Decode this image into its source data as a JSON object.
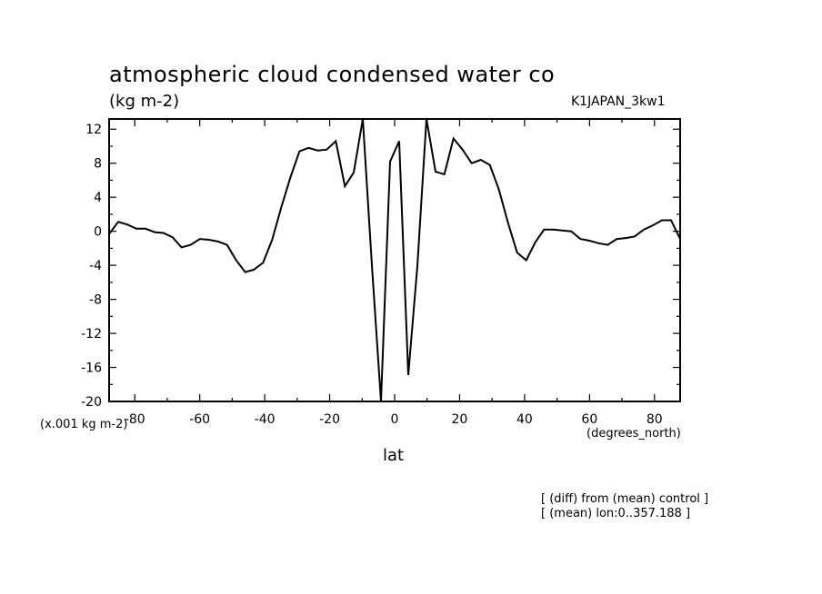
{
  "chart_data": {
    "type": "line",
    "title": "atmospheric cloud condensed water co",
    "units": "(kg m-2)",
    "run_label": "K1JAPAN_3kw1",
    "scale_note": "(x.001 kg m-2)",
    "xlabel": "lat",
    "x_units": "(degrees_north)",
    "footnotes": [
      "[ (diff) from (mean) control ]",
      "[ (mean) lon:0..357.188 ]"
    ],
    "xlim": [
      -87.9,
      87.9
    ],
    "ylim": [
      -20,
      13.2
    ],
    "x_ticks": [
      -80,
      -60,
      -40,
      -20,
      0,
      20,
      40,
      60,
      80
    ],
    "x_tick_labels": [
      "-80",
      "-60",
      "-40",
      "-20",
      "0",
      "20",
      "40",
      "60",
      "80"
    ],
    "y_ticks": [
      12,
      8,
      4,
      0,
      -4,
      -8,
      -12,
      -16,
      -20
    ],
    "y_tick_labels": [
      "12",
      "8",
      "4",
      "0",
      "-4",
      "-8",
      "-12",
      "-16",
      "-20"
    ],
    "grid": false,
    "x": [
      -87.9,
      -85.1,
      -82.3,
      -79.5,
      -76.7,
      -73.9,
      -71.2,
      -68.4,
      -65.6,
      -62.8,
      -60.0,
      -57.2,
      -54.4,
      -51.6,
      -48.8,
      -46.0,
      -43.3,
      -40.5,
      -37.7,
      -34.9,
      -32.1,
      -29.3,
      -26.5,
      -23.7,
      -20.9,
      -18.1,
      -15.3,
      -12.6,
      -9.8,
      -7.0,
      -4.2,
      -1.4,
      1.4,
      4.2,
      7.0,
      9.8,
      12.6,
      15.3,
      18.1,
      20.9,
      23.7,
      26.5,
      29.3,
      32.1,
      34.9,
      37.7,
      40.5,
      43.3,
      46.0,
      48.8,
      51.6,
      54.4,
      57.2,
      60.0,
      62.8,
      65.6,
      68.4,
      71.2,
      73.9,
      76.7,
      79.5,
      82.3,
      85.1,
      87.9
    ],
    "series": [
      {
        "values": [
          -0.3,
          1.1,
          0.8,
          0.3,
          0.3,
          -0.1,
          -0.2,
          -0.7,
          -1.9,
          -1.6,
          -0.9,
          -1.0,
          -1.2,
          -1.6,
          -3.4,
          -4.8,
          -4.5,
          -3.7,
          -1.0,
          2.8,
          6.3,
          9.4,
          9.8,
          9.5,
          9.6,
          10.6,
          5.3,
          6.9,
          13.2,
          -4.0,
          -20.0,
          8.2,
          10.6,
          -16.9,
          -4.1,
          13.2,
          7.0,
          6.7,
          10.9,
          9.6,
          8.0,
          8.4,
          7.8,
          4.9,
          1.0,
          -2.5,
          -3.4,
          -1.3,
          0.2,
          0.2,
          0.1,
          0.0,
          -0.9,
          -1.1,
          -1.4,
          -1.6,
          -0.9,
          -0.8,
          -0.6,
          0.2,
          0.7,
          1.3,
          1.3,
          -0.9
        ]
      }
    ]
  }
}
